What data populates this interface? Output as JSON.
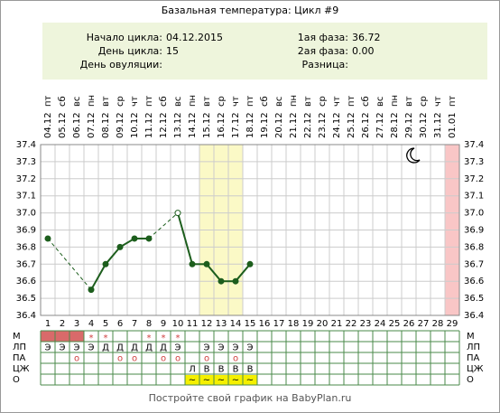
{
  "title": "Базальная температура: Цикл #9",
  "info": {
    "left": [
      {
        "label": "Начало цикла:",
        "value": "04.12.2015"
      },
      {
        "label": "День цикла:",
        "value": "15"
      },
      {
        "label": "День овуляции:"
      }
    ],
    "right": [
      {
        "label": "1ая фаза:",
        "value": "36.72"
      },
      {
        "label": "2ая фаза:",
        "value": "0.00"
      },
      {
        "label": "Разница:"
      }
    ]
  },
  "chart_data": {
    "type": "line",
    "weekdays": [
      "пт",
      "сб",
      "вс",
      "пн",
      "вт",
      "ср",
      "чт",
      "пт",
      "сб",
      "вс",
      "пн",
      "вт",
      "ср",
      "чт",
      "пт",
      "сб",
      "вс",
      "пн",
      "вт",
      "ср",
      "чт",
      "пт",
      "сб",
      "вс",
      "пн",
      "вт",
      "ср",
      "чт",
      "пт"
    ],
    "x": [
      "04.12",
      "05.12",
      "06.12",
      "07.12",
      "08.12",
      "09.12",
      "10.12",
      "11.12",
      "12.12",
      "13.12",
      "14.12",
      "15.12",
      "16.12",
      "17.12",
      "18.12",
      "19.12",
      "20.12",
      "21.12",
      "22.12",
      "23.12",
      "24.12",
      "25.12",
      "26.12",
      "27.12",
      "28.12",
      "29.12",
      "30.12",
      "31.12",
      "01.01"
    ],
    "categories": [
      1,
      2,
      3,
      4,
      5,
      6,
      7,
      8,
      9,
      10,
      11,
      12,
      13,
      14,
      15,
      16,
      17,
      18,
      19,
      20,
      21,
      22,
      23,
      24,
      25,
      26,
      27,
      28,
      29
    ],
    "series": [
      {
        "color": "#1d5e1d",
        "values": [
          36.85,
          null,
          null,
          36.55,
          36.7,
          36.8,
          36.85,
          36.85,
          null,
          37.0,
          36.7,
          36.7,
          36.6,
          36.6,
          36.7,
          null,
          null,
          null,
          null,
          null,
          null,
          null,
          null,
          null,
          null,
          null,
          null,
          null,
          null
        ]
      }
    ],
    "excluded_days": [
      10
    ],
    "ylim": [
      36.4,
      37.4
    ],
    "yticks": [
      36.4,
      36.5,
      36.6,
      36.7,
      36.8,
      36.9,
      {
        "value": 37.0,
        "label": "37.0"
      },
      37.1,
      37.2,
      37.3,
      37.4
    ],
    "grid": true,
    "bands": [
      {
        "from": 12,
        "to": 14,
        "color": "#fbf9c6"
      },
      {
        "from": 29,
        "to": 29,
        "color": "#f9c6c6"
      }
    ]
  },
  "table": {
    "rows": [
      {
        "label": "М",
        "filled_days": [
          1,
          2,
          3
        ],
        "fill": "#d96a6a",
        "cells": [
          null,
          null,
          null,
          "*",
          "*",
          null,
          null,
          "*",
          "*",
          "*",
          null,
          null,
          null,
          null,
          null,
          null,
          null,
          null,
          null,
          null,
          null,
          null,
          null,
          null,
          null,
          null,
          null,
          null,
          null
        ]
      },
      {
        "label": "ЛП",
        "cells": [
          "Э",
          "Э",
          "Э",
          "Э",
          "Д",
          "Д",
          "Д",
          "Д",
          "Д",
          "Э",
          null,
          "Э",
          "Э",
          "Э",
          "Э",
          null,
          null,
          null,
          null,
          null,
          null,
          null,
          null,
          null,
          null,
          null,
          null,
          null,
          null
        ]
      },
      {
        "label": "ПА",
        "cells": [
          null,
          null,
          "о",
          null,
          null,
          "о",
          "о",
          null,
          "о",
          "о",
          null,
          "о",
          null,
          "о",
          null,
          null,
          null,
          null,
          null,
          null,
          null,
          null,
          null,
          null,
          null,
          null,
          null,
          null,
          null
        ]
      },
      {
        "label": "ЦЖ",
        "cells": [
          null,
          null,
          null,
          null,
          null,
          null,
          null,
          null,
          null,
          null,
          "Л",
          "В",
          "В",
          "В",
          "В",
          null,
          null,
          null,
          null,
          null,
          null,
          null,
          null,
          null,
          null,
          null,
          null,
          null,
          null
        ]
      },
      {
        "label": "О",
        "cell_fill": "#f5f000",
        "cells": [
          null,
          null,
          null,
          null,
          null,
          null,
          null,
          null,
          null,
          null,
          "~",
          "~",
          "~",
          "~",
          "~",
          null,
          null,
          null,
          null,
          null,
          null,
          null,
          null,
          null,
          null,
          null,
          null,
          null,
          null
        ]
      }
    ]
  },
  "footer": "Постройте свой график на BabyPlan.ru"
}
